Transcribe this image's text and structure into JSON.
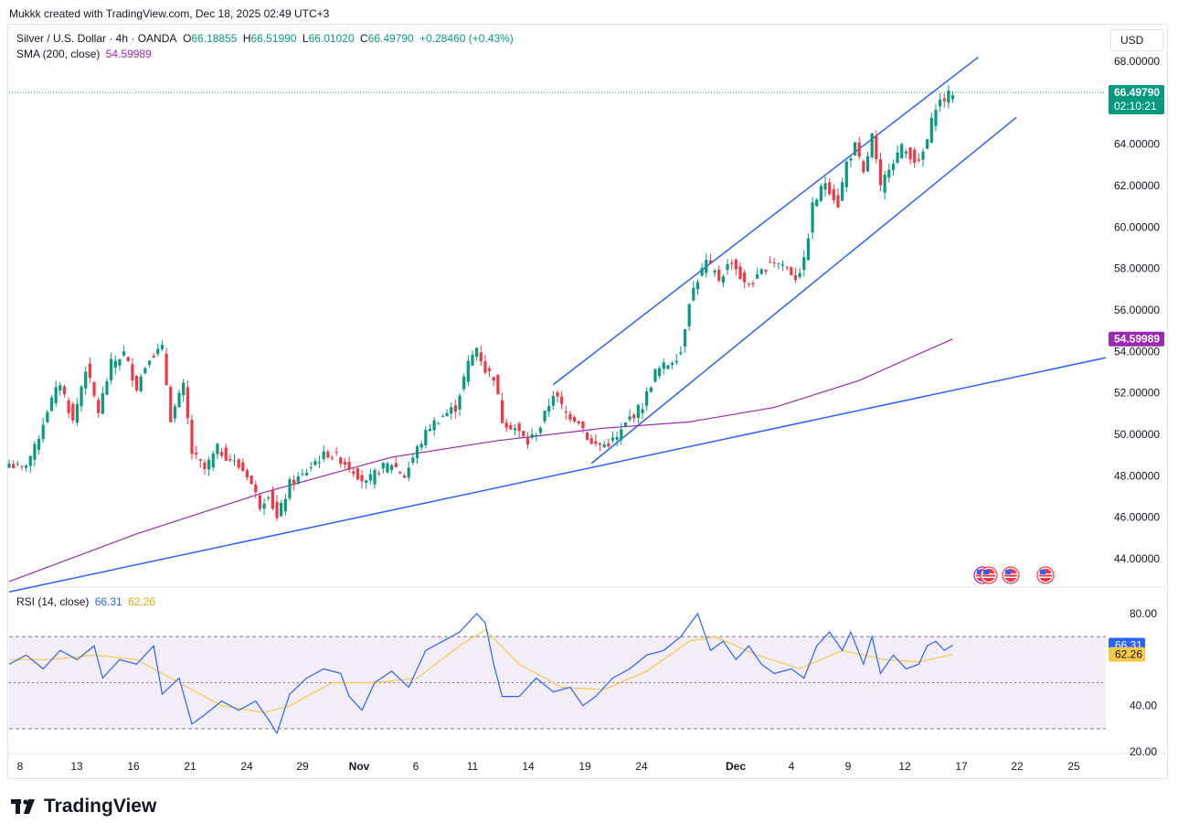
{
  "credit": "Mukkk created with TradingView.com, Dec 18, 2025 02:49 UTC+3",
  "legend": {
    "symbol": "Silver / U.S. Dollar · 4h · OANDA",
    "o_label": "O",
    "o": "66.18855",
    "h_label": "H",
    "h": "66.51990",
    "l_label": "L",
    "l": "66.01020",
    "c_label": "C",
    "c": "66.49790",
    "change": "+0.28460 (+0.43%)",
    "sma_label": "SMA (200, close)",
    "sma_value": "54.59989",
    "rsi_label": "RSI (14, close)",
    "rsi_value": "66.31",
    "rsi_ma_value": "62.26"
  },
  "currency_button": "USD",
  "price_badge": {
    "price": "66.49790",
    "countdown": "02:10:21"
  },
  "sma_badge": "54.59989",
  "rsi_badges": {
    "rsi": "66.31",
    "ma": "62.26"
  },
  "brand": "TradingView",
  "colors": {
    "up": "#089981",
    "down": "#f23645",
    "sma": "#9c27b0",
    "trend": "#2962ff",
    "rsi": "#2962ff",
    "rsi_ma": "#f7c948",
    "rsi_band": "#ede7f6"
  },
  "chart_data": {
    "type": "candlestick",
    "title": "Silver / U.S. Dollar · 4h · OANDA",
    "y_ticks": [
      "68.00000",
      "66.00000",
      "64.00000",
      "62.00000",
      "60.00000",
      "58.00000",
      "56.00000",
      "54.00000",
      "52.00000",
      "50.00000",
      "48.00000",
      "46.00000",
      "44.00000"
    ],
    "ylim": [
      43.0,
      68.5
    ],
    "x_ticks": [
      "8",
      "13",
      "16",
      "21",
      "24",
      "29",
      "Nov",
      "6",
      "11",
      "14",
      "19",
      "24",
      "Dec",
      "4",
      "9",
      "12",
      "17",
      "22",
      "25"
    ],
    "price_path": [
      {
        "t": 0,
        "p": 48.6
      },
      {
        "t": 3,
        "p": 48.3
      },
      {
        "t": 6,
        "p": 49.3
      },
      {
        "t": 9,
        "p": 51.2
      },
      {
        "t": 12,
        "p": 52.5
      },
      {
        "t": 15,
        "p": 50.6
      },
      {
        "t": 18,
        "p": 53.2
      },
      {
        "t": 21,
        "p": 51.1
      },
      {
        "t": 24,
        "p": 53.4
      },
      {
        "t": 27,
        "p": 53.9
      },
      {
        "t": 30,
        "p": 52.3
      },
      {
        "t": 33,
        "p": 53.8
      },
      {
        "t": 36,
        "p": 54.1
      },
      {
        "t": 38,
        "p": 50.8
      },
      {
        "t": 41,
        "p": 52.3
      },
      {
        "t": 43,
        "p": 49.1
      },
      {
        "t": 46,
        "p": 48.3
      },
      {
        "t": 49,
        "p": 49.3
      },
      {
        "t": 52,
        "p": 48.8
      },
      {
        "t": 56,
        "p": 48.1
      },
      {
        "t": 59,
        "p": 46.6
      },
      {
        "t": 61,
        "p": 47.2
      },
      {
        "t": 63,
        "p": 45.9
      },
      {
        "t": 66,
        "p": 47.6
      },
      {
        "t": 69,
        "p": 48.0
      },
      {
        "t": 72,
        "p": 48.7
      },
      {
        "t": 75,
        "p": 49.1
      },
      {
        "t": 78,
        "p": 48.8
      },
      {
        "t": 81,
        "p": 48.3
      },
      {
        "t": 84,
        "p": 47.6
      },
      {
        "t": 87,
        "p": 48.3
      },
      {
        "t": 90,
        "p": 48.6
      },
      {
        "t": 93,
        "p": 48.0
      },
      {
        "t": 96,
        "p": 49.3
      },
      {
        "t": 99,
        "p": 50.4
      },
      {
        "t": 102,
        "p": 50.9
      },
      {
        "t": 105,
        "p": 51.3
      },
      {
        "t": 108,
        "p": 53.4
      },
      {
        "t": 110,
        "p": 54.2
      },
      {
        "t": 112,
        "p": 53.1
      },
      {
        "t": 114,
        "p": 52.8
      },
      {
        "t": 116,
        "p": 50.7
      },
      {
        "t": 119,
        "p": 50.3
      },
      {
        "t": 122,
        "p": 49.6
      },
      {
        "t": 125,
        "p": 50.4
      },
      {
        "t": 128,
        "p": 52.0
      },
      {
        "t": 131,
        "p": 51.0
      },
      {
        "t": 134,
        "p": 50.7
      },
      {
        "t": 137,
        "p": 49.5
      },
      {
        "t": 140,
        "p": 49.5
      },
      {
        "t": 143,
        "p": 49.8
      },
      {
        "t": 146,
        "p": 50.8
      },
      {
        "t": 149,
        "p": 51.4
      },
      {
        "t": 152,
        "p": 53.0
      },
      {
        "t": 155,
        "p": 53.4
      },
      {
        "t": 158,
        "p": 54.0
      },
      {
        "t": 160,
        "p": 56.5
      },
      {
        "t": 162,
        "p": 57.5
      },
      {
        "t": 164,
        "p": 58.3
      },
      {
        "t": 167,
        "p": 57.5
      },
      {
        "t": 170,
        "p": 58.4
      },
      {
        "t": 173,
        "p": 57.2
      },
      {
        "t": 176,
        "p": 57.5
      },
      {
        "t": 179,
        "p": 58.4
      },
      {
        "t": 182,
        "p": 58.2
      },
      {
        "t": 185,
        "p": 57.6
      },
      {
        "t": 187,
        "p": 58.3
      },
      {
        "t": 189,
        "p": 61.0
      },
      {
        "t": 192,
        "p": 62.2
      },
      {
        "t": 195,
        "p": 61.1
      },
      {
        "t": 197,
        "p": 63.1
      },
      {
        "t": 199,
        "p": 63.9
      },
      {
        "t": 201,
        "p": 62.5
      },
      {
        "t": 203,
        "p": 64.4
      },
      {
        "t": 205,
        "p": 61.8
      },
      {
        "t": 207,
        "p": 63.0
      },
      {
        "t": 210,
        "p": 63.8
      },
      {
        "t": 212,
        "p": 63.5
      },
      {
        "t": 214,
        "p": 63.0
      },
      {
        "t": 216,
        "p": 64.2
      },
      {
        "t": 218,
        "p": 65.9
      },
      {
        "t": 220,
        "p": 66.2
      },
      {
        "t": 222,
        "p": 66.5
      }
    ],
    "sma_200_path": [
      {
        "t": 0,
        "p": 42.9
      },
      {
        "t": 30,
        "p": 45.2
      },
      {
        "t": 60,
        "p": 47.2
      },
      {
        "t": 90,
        "p": 48.9
      },
      {
        "t": 115,
        "p": 49.7
      },
      {
        "t": 140,
        "p": 50.3
      },
      {
        "t": 160,
        "p": 50.6
      },
      {
        "t": 180,
        "p": 51.3
      },
      {
        "t": 200,
        "p": 52.6
      },
      {
        "t": 212,
        "p": 53.7
      },
      {
        "t": 222,
        "p": 54.6
      }
    ],
    "rsi_path": [
      {
        "t": 0,
        "p": 58
      },
      {
        "t": 4,
        "p": 62
      },
      {
        "t": 8,
        "p": 56
      },
      {
        "t": 12,
        "p": 64
      },
      {
        "t": 16,
        "p": 60
      },
      {
        "t": 20,
        "p": 66
      },
      {
        "t": 22,
        "p": 52
      },
      {
        "t": 26,
        "p": 60
      },
      {
        "t": 30,
        "p": 58
      },
      {
        "t": 34,
        "p": 66
      },
      {
        "t": 36,
        "p": 45
      },
      {
        "t": 40,
        "p": 52
      },
      {
        "t": 43,
        "p": 32
      },
      {
        "t": 46,
        "p": 36
      },
      {
        "t": 50,
        "p": 42
      },
      {
        "t": 54,
        "p": 38
      },
      {
        "t": 58,
        "p": 42
      },
      {
        "t": 61,
        "p": 34
      },
      {
        "t": 63,
        "p": 28
      },
      {
        "t": 66,
        "p": 45
      },
      {
        "t": 70,
        "p": 52
      },
      {
        "t": 74,
        "p": 56
      },
      {
        "t": 78,
        "p": 54
      },
      {
        "t": 80,
        "p": 44
      },
      {
        "t": 83,
        "p": 38
      },
      {
        "t": 86,
        "p": 50
      },
      {
        "t": 90,
        "p": 55
      },
      {
        "t": 94,
        "p": 48
      },
      {
        "t": 98,
        "p": 64
      },
      {
        "t": 102,
        "p": 68
      },
      {
        "t": 106,
        "p": 72
      },
      {
        "t": 108,
        "p": 76
      },
      {
        "t": 110,
        "p": 80
      },
      {
        "t": 112,
        "p": 76
      },
      {
        "t": 114,
        "p": 58
      },
      {
        "t": 116,
        "p": 44
      },
      {
        "t": 120,
        "p": 44
      },
      {
        "t": 124,
        "p": 52
      },
      {
        "t": 128,
        "p": 46
      },
      {
        "t": 132,
        "p": 48
      },
      {
        "t": 135,
        "p": 40
      },
      {
        "t": 138,
        "p": 44
      },
      {
        "t": 142,
        "p": 52
      },
      {
        "t": 146,
        "p": 56
      },
      {
        "t": 150,
        "p": 62
      },
      {
        "t": 154,
        "p": 64
      },
      {
        "t": 158,
        "p": 70
      },
      {
        "t": 162,
        "p": 80
      },
      {
        "t": 165,
        "p": 64
      },
      {
        "t": 168,
        "p": 68
      },
      {
        "t": 171,
        "p": 60
      },
      {
        "t": 174,
        "p": 66
      },
      {
        "t": 177,
        "p": 58
      },
      {
        "t": 180,
        "p": 54
      },
      {
        "t": 184,
        "p": 56
      },
      {
        "t": 187,
        "p": 52
      },
      {
        "t": 190,
        "p": 66
      },
      {
        "t": 193,
        "p": 72
      },
      {
        "t": 196,
        "p": 64
      },
      {
        "t": 198,
        "p": 72
      },
      {
        "t": 201,
        "p": 58
      },
      {
        "t": 203,
        "p": 70
      },
      {
        "t": 205,
        "p": 54
      },
      {
        "t": 208,
        "p": 62
      },
      {
        "t": 211,
        "p": 56
      },
      {
        "t": 214,
        "p": 58
      },
      {
        "t": 216,
        "p": 66
      },
      {
        "t": 218,
        "p": 68
      },
      {
        "t": 220,
        "p": 64
      },
      {
        "t": 222,
        "p": 66.31
      }
    ],
    "rsi_ma_path": [
      {
        "t": 0,
        "p": 60
      },
      {
        "t": 10,
        "p": 60
      },
      {
        "t": 20,
        "p": 62
      },
      {
        "t": 30,
        "p": 60
      },
      {
        "t": 40,
        "p": 50
      },
      {
        "t": 50,
        "p": 40
      },
      {
        "t": 60,
        "p": 37
      },
      {
        "t": 66,
        "p": 40
      },
      {
        "t": 76,
        "p": 50
      },
      {
        "t": 86,
        "p": 50
      },
      {
        "t": 96,
        "p": 52
      },
      {
        "t": 106,
        "p": 66
      },
      {
        "t": 112,
        "p": 73
      },
      {
        "t": 120,
        "p": 58
      },
      {
        "t": 130,
        "p": 48
      },
      {
        "t": 140,
        "p": 47
      },
      {
        "t": 150,
        "p": 55
      },
      {
        "t": 160,
        "p": 68
      },
      {
        "t": 166,
        "p": 70
      },
      {
        "t": 176,
        "p": 62
      },
      {
        "t": 186,
        "p": 56
      },
      {
        "t": 196,
        "p": 64
      },
      {
        "t": 206,
        "p": 60
      },
      {
        "t": 214,
        "p": 59
      },
      {
        "t": 222,
        "p": 62.26
      }
    ],
    "rsi_levels": [
      70,
      50,
      30
    ],
    "rsi_ticks": [
      "80.00",
      "40.00",
      "20.00"
    ],
    "rsi_ylim": [
      18,
      86
    ],
    "trendlines": [
      {
        "name": "long-support",
        "from": {
          "t": 0,
          "p": 42.4
        },
        "to": {
          "t": 258,
          "p": 53.7
        }
      },
      {
        "name": "channel-upper",
        "from": {
          "t": 128,
          "p": 52.4
        },
        "to": {
          "t": 228,
          "p": 68.2
        }
      },
      {
        "name": "channel-lower",
        "from": {
          "t": 137,
          "p": 48.6
        },
        "to": {
          "t": 237,
          "p": 65.3
        }
      }
    ],
    "t_range": [
      0,
      258
    ]
  }
}
